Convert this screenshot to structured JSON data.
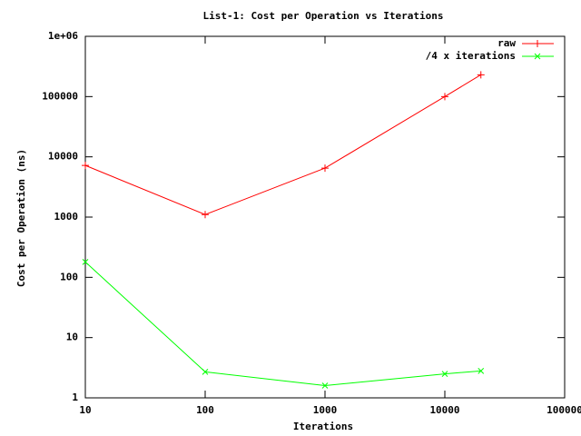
{
  "chart_data": {
    "type": "line",
    "title": "List-1: Cost per Operation vs Iterations",
    "x_label": "Iterations",
    "y_label": "Cost per Operation (ns)",
    "log_x": true,
    "log_y": true,
    "legend": "top-right",
    "xlim": [
      10,
      100000
    ],
    "xticks": [
      10,
      100,
      1000,
      10000,
      100000
    ],
    "ylim": [
      1,
      1000000
    ],
    "yticks": [
      1,
      10,
      100,
      1000,
      10000,
      100000,
      {
        "value": 1000000,
        "label": "1e+06"
      }
    ],
    "series": [
      {
        "name": "raw",
        "color": "#ff0000",
        "marker": "+",
        "x": [
          10,
          100,
          1000,
          10000,
          20000
        ],
        "values": [
          7200,
          1100,
          6500,
          100000,
          230000
        ]
      },
      {
        "name": "/4 x iterations",
        "color": "#00ff00",
        "marker": "x",
        "x": [
          10,
          100,
          1000,
          10000,
          20000
        ],
        "values": [
          180,
          2.7,
          1.6,
          2.5,
          2.8
        ]
      }
    ]
  }
}
